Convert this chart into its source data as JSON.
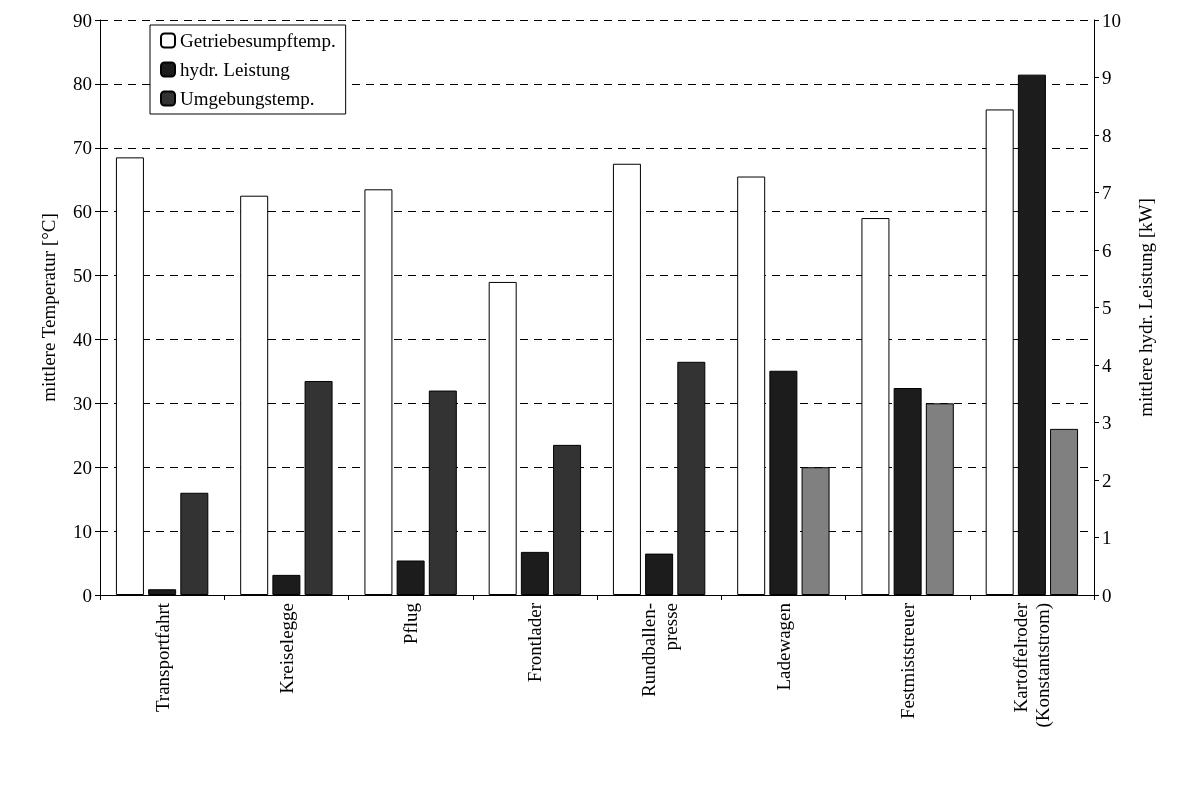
{
  "chart_data": {
    "type": "bar",
    "categories": [
      "Transportfahrt",
      "Kreiselegge",
      "Pflug",
      "Frontlader",
      "Rundballen-\npresse",
      "Ladewagen",
      "Festmiststreuer",
      "Kartoffelroder\n(Konstantstrom)"
    ],
    "series": [
      {
        "name": "Getriebesumpftemp.",
        "color": "#ffffff",
        "values": [
          68.5,
          62.5,
          63.5,
          49,
          67.5,
          65.5,
          59,
          76
        ]
      },
      {
        "name": "hydr. Leistung",
        "color": "#1c1c1c",
        "axis": "y2",
        "values": [
          0.1,
          0.35,
          0.6,
          0.75,
          0.72,
          3.9,
          3.6,
          9.05
        ]
      },
      {
        "name": "Umgebungstemp.",
        "color": "#333333",
        "colors": [
          "#333333",
          "#333333",
          "#333333",
          "#333333",
          "#333333",
          "#808080",
          "#808080",
          "#808080"
        ],
        "values": [
          16,
          33.5,
          32,
          23.5,
          36.5,
          20,
          30,
          26
        ]
      }
    ],
    "ylabel": "mittlere Temperatur [°C]",
    "y2label": "mittlere hydr. Leistung [kW]",
    "ylim": [
      0,
      90
    ],
    "yticks": [
      0,
      10,
      20,
      30,
      40,
      50,
      60,
      70,
      80,
      90
    ],
    "y2lim": [
      0,
      10
    ],
    "y2ticks": [
      0,
      1,
      2,
      3,
      4,
      5,
      6,
      7,
      8,
      9,
      10
    ],
    "grid": "y",
    "legend": "top left"
  }
}
